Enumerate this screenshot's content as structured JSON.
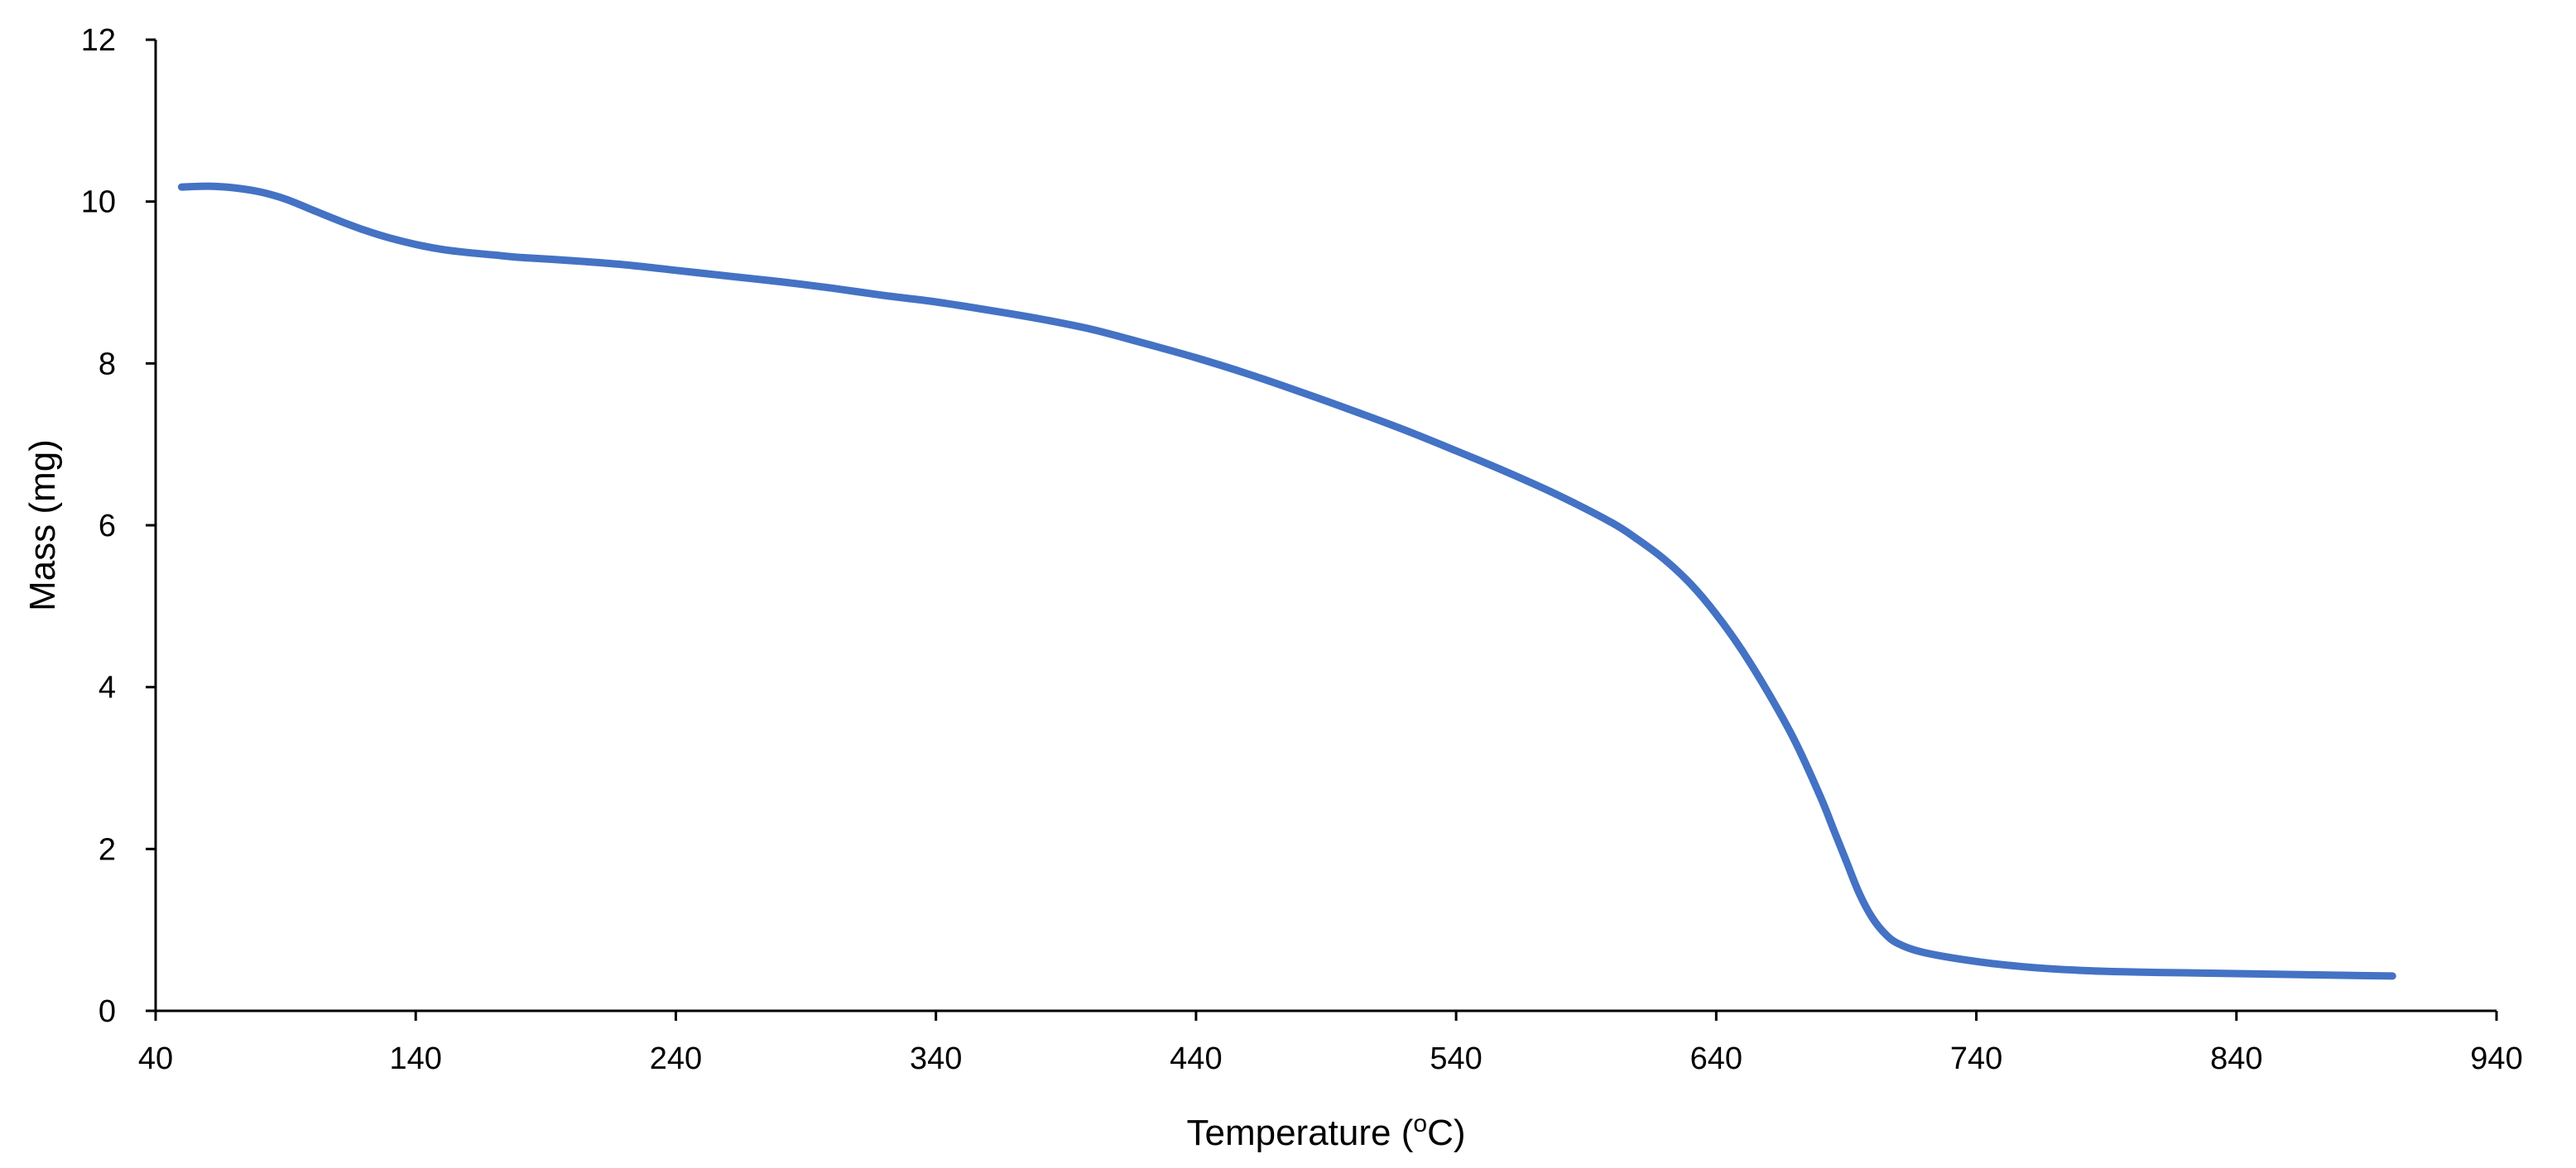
{
  "chart_data": {
    "type": "line",
    "title": "",
    "xlabel": {
      "main": "Temperature (",
      "sup": "o",
      "unit": "C)"
    },
    "ylabel": "Mass (mg)",
    "xlim": [
      40,
      940
    ],
    "ylim": [
      0,
      12
    ],
    "x_ticks": [
      "40",
      "140",
      "240",
      "340",
      "440",
      "540",
      "640",
      "740",
      "840",
      "940"
    ],
    "y_ticks": [
      "0",
      "2",
      "4",
      "6",
      "8",
      "10",
      "12"
    ],
    "grid": false,
    "legend": "none",
    "series": [
      {
        "name": "Mass",
        "color": "#4472C4",
        "x": [
          50,
          60,
          70,
          80,
          90,
          100,
          110,
          120,
          130,
          140,
          150,
          160,
          170,
          180,
          200,
          220,
          240,
          260,
          280,
          300,
          320,
          340,
          360,
          380,
          400,
          420,
          440,
          460,
          480,
          500,
          520,
          540,
          560,
          580,
          600,
          610,
          620,
          630,
          640,
          650,
          660,
          670,
          680,
          685,
          690,
          695,
          700,
          705,
          710,
          720,
          740,
          760,
          780,
          800,
          820,
          840,
          860,
          880,
          900
        ],
        "y": [
          10.18,
          10.19,
          10.17,
          10.12,
          10.03,
          9.9,
          9.77,
          9.65,
          9.55,
          9.47,
          9.41,
          9.37,
          9.34,
          9.31,
          9.27,
          9.22,
          9.15,
          9.08,
          9.01,
          8.93,
          8.84,
          8.76,
          8.66,
          8.55,
          8.42,
          8.25,
          8.07,
          7.87,
          7.65,
          7.42,
          7.18,
          6.92,
          6.65,
          6.36,
          6.03,
          5.82,
          5.58,
          5.28,
          4.9,
          4.45,
          3.93,
          3.35,
          2.65,
          2.25,
          1.85,
          1.45,
          1.15,
          0.95,
          0.83,
          0.72,
          0.61,
          0.54,
          0.5,
          0.48,
          0.47,
          0.46,
          0.45,
          0.44,
          0.43
        ]
      }
    ]
  }
}
